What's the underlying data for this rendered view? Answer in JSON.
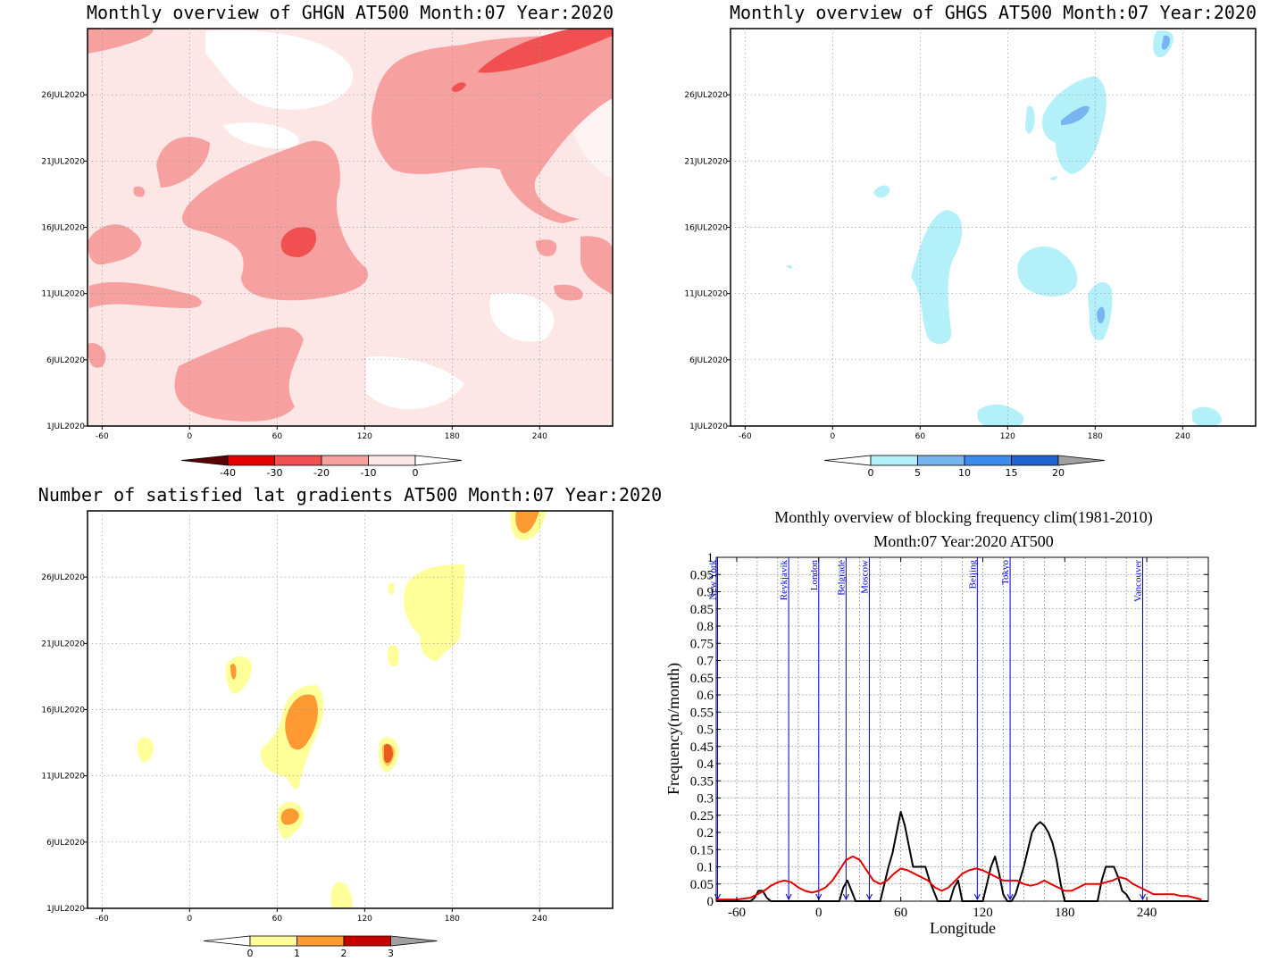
{
  "panels": {
    "ghgn": {
      "title": "Monthly overview of GHGN AT500 Month:07 Year:2020",
      "yticks": [
        "1JUL2020",
        "6JUL2020",
        "11JUL2020",
        "16JUL2020",
        "21JUL2020",
        "26JUL2020"
      ],
      "xticks": [
        "-60",
        "0",
        "60",
        "120",
        "180",
        "240"
      ],
      "colorbar": {
        "labels": [
          "-40",
          "-30",
          "-20",
          "-10",
          "0"
        ],
        "colors": [
          "#5a0000",
          "#e60000",
          "#f05050",
          "#f7a0a0",
          "#fde6e6",
          "#ffffff"
        ]
      }
    },
    "ghgs": {
      "title": "Monthly overview of GHGS AT500 Month:07 Year:2020",
      "yticks": [
        "1JUL2020",
        "6JUL2020",
        "11JUL2020",
        "16JUL2020",
        "21JUL2020",
        "26JUL2020"
      ],
      "xticks": [
        "-60",
        "0",
        "60",
        "120",
        "180",
        "240"
      ],
      "colorbar": {
        "labels": [
          "0",
          "5",
          "10",
          "15",
          "20"
        ],
        "colors": [
          "#ffffff",
          "#b4f0fa",
          "#78b4f0",
          "#3c8cf0",
          "#1e64d2",
          "#a0a0a0"
        ]
      }
    },
    "satisfied": {
      "title": "Number of satisfied lat gradients AT500 Month:07 Year:2020",
      "yticks": [
        "1JUL2020",
        "6JUL2020",
        "11JUL2020",
        "16JUL2020",
        "21JUL2020",
        "26JUL2020"
      ],
      "xticks": [
        "-60",
        "0",
        "60",
        "120",
        "180",
        "240"
      ],
      "colorbar": {
        "labels": [
          "0",
          "1",
          "2",
          "3"
        ],
        "colors": [
          "#ffffff",
          "#ffff9a",
          "#ff9a32",
          "#c80000",
          "#a0a0a0"
        ]
      }
    }
  },
  "chart_data": {
    "type": "line",
    "title": "Monthly overview of blocking frequency clim(1981-2010)",
    "subtitle": "Month:07 Year:2020  AT500",
    "xlabel": "Longitude",
    "ylabel": "Frequency(n/month)",
    "xlim": [
      -75,
      285
    ],
    "ylim": [
      0,
      1
    ],
    "xticks": [
      -60,
      0,
      60,
      120,
      180,
      240
    ],
    "yticks": [
      "0",
      "0.05",
      "0.1",
      "0.15",
      "0.2",
      "0.25",
      "0.3",
      "0.35",
      "0.4",
      "0.45",
      "0.5",
      "0.55",
      "0.6",
      "0.65",
      "0.7",
      "0.75",
      "0.8",
      "0.85",
      "0.9",
      "0.95",
      "1"
    ],
    "grid": true,
    "cities": [
      {
        "name": "New York",
        "lon": -74
      },
      {
        "name": "Reykjavik",
        "lon": -22
      },
      {
        "name": "London",
        "lon": 0
      },
      {
        "name": "Belgrade",
        "lon": 20
      },
      {
        "name": "Moscow",
        "lon": 37
      },
      {
        "name": "Beijing",
        "lon": 116
      },
      {
        "name": "Tokyo",
        "lon": 140
      },
      {
        "name": "Vancouver",
        "lon": 237
      }
    ],
    "series": [
      {
        "color": "#000000",
        "x": [
          -75,
          -50,
          -47,
          -44,
          -41,
          -38,
          -35,
          -30,
          -10,
          15,
          18,
          21,
          24,
          27,
          30,
          33,
          36,
          45,
          48,
          51,
          54,
          57,
          60,
          63,
          66,
          69,
          72,
          75,
          78,
          81,
          84,
          87,
          90,
          93,
          96,
          99,
          102,
          105,
          120,
          123,
          126,
          129,
          132,
          135,
          138,
          141,
          144,
          147,
          150,
          153,
          156,
          159,
          162,
          165,
          168,
          171,
          174,
          177,
          180,
          183,
          186,
          195,
          204,
          207,
          210,
          213,
          216,
          219,
          222,
          225,
          228,
          231,
          234,
          237,
          240,
          243,
          250,
          285
        ],
        "y": [
          0,
          0,
          0.01,
          0.03,
          0.03,
          0.01,
          0,
          0,
          0,
          0,
          0.04,
          0.06,
          0.03,
          0,
          0,
          0,
          0,
          0,
          0.05,
          0.1,
          0.14,
          0.2,
          0.26,
          0.22,
          0.16,
          0.1,
          0.1,
          0.1,
          0.1,
          0.06,
          0.03,
          0,
          0,
          0,
          0,
          0.04,
          0.06,
          0,
          0,
          0.05,
          0.1,
          0.13,
          0.08,
          0.02,
          0,
          0,
          0.02,
          0.06,
          0.1,
          0.15,
          0.2,
          0.22,
          0.23,
          0.22,
          0.2,
          0.17,
          0.12,
          0.05,
          0,
          0,
          0,
          0,
          0,
          0.06,
          0.1,
          0.1,
          0.1,
          0.07,
          0.03,
          0.02,
          0,
          0,
          0,
          0,
          0,
          0,
          0,
          0
        ]
      },
      {
        "color": "#e60000",
        "x": [
          -75,
          -60,
          -50,
          -45,
          -40,
          -35,
          -30,
          -25,
          -20,
          -15,
          -10,
          -5,
          0,
          5,
          10,
          15,
          20,
          25,
          30,
          35,
          40,
          45,
          50,
          55,
          60,
          65,
          70,
          75,
          80,
          85,
          90,
          95,
          100,
          105,
          110,
          115,
          120,
          125,
          130,
          135,
          140,
          145,
          150,
          155,
          160,
          165,
          170,
          175,
          180,
          185,
          190,
          195,
          200,
          205,
          210,
          215,
          220,
          225,
          230,
          235,
          240,
          245,
          250,
          255,
          260,
          265,
          270,
          275,
          280
        ],
        "y": [
          0.005,
          0.005,
          0.01,
          0.02,
          0.03,
          0.045,
          0.055,
          0.06,
          0.055,
          0.04,
          0.03,
          0.025,
          0.03,
          0.04,
          0.06,
          0.09,
          0.12,
          0.13,
          0.12,
          0.09,
          0.06,
          0.05,
          0.06,
          0.08,
          0.095,
          0.09,
          0.08,
          0.07,
          0.06,
          0.04,
          0.03,
          0.04,
          0.06,
          0.08,
          0.09,
          0.095,
          0.09,
          0.08,
          0.07,
          0.06,
          0.06,
          0.06,
          0.05,
          0.045,
          0.05,
          0.06,
          0.05,
          0.04,
          0.03,
          0.03,
          0.04,
          0.05,
          0.05,
          0.05,
          0.055,
          0.06,
          0.07,
          0.065,
          0.05,
          0.04,
          0.03,
          0.02,
          0.02,
          0.02,
          0.02,
          0.015,
          0.015,
          0.01,
          0.005
        ]
      }
    ]
  }
}
